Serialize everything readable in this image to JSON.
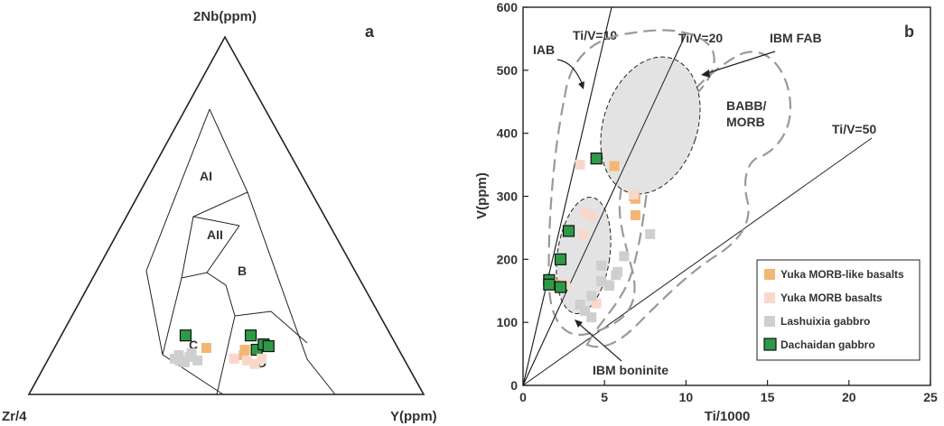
{
  "chart_data": [
    {
      "type": "ternary",
      "panel_label": "a",
      "apices": {
        "top": "2Nb(ppm)",
        "left": "Zr/4",
        "right": "Y(ppm)"
      },
      "field_labels": [
        "AI",
        "AII",
        "B",
        "C",
        "D"
      ],
      "series": [
        {
          "name": "Dachaidan gabbro",
          "color": "#2e9a47",
          "points": [
            [
              52,
              16.5,
              31.5
            ],
            [
              35.5,
              16.5,
              48
            ],
            [
              36,
              12.5,
              51.5
            ],
            [
              33.5,
              14,
              52.5
            ],
            [
              32.5,
              13.5,
              54
            ]
          ]
        },
        {
          "name": "Yuka MORB-like basalts",
          "color": "#f4b673",
          "points": [
            [
              48.5,
              13,
              38.5
            ],
            [
              40,
              11,
              49
            ],
            [
              39,
              12.5,
              48.5
            ]
          ]
        },
        {
          "name": "Yuka MORB basalts",
          "color": "#f9d8cc",
          "points": [
            [
              43,
              10,
              47
            ],
            [
              38.5,
              8.5,
              53
            ],
            [
              36,
              10,
              54
            ],
            [
              40,
              9.5,
              50.5
            ]
          ]
        },
        {
          "name": "Lashuixia gabbro",
          "color": "#cfcfcf",
          "points": [
            [
              56.5,
              11,
              32.5
            ],
            [
              58,
              10,
              32
            ],
            [
              56,
              9,
              35
            ],
            [
              54,
              10.5,
              35.5
            ],
            [
              53,
              11.5,
              35.5
            ],
            [
              57,
              9.5,
              33.5
            ],
            [
              52.5,
              9.5,
              38
            ]
          ]
        }
      ]
    },
    {
      "type": "scatter",
      "panel_label": "b",
      "xlabel": "Ti/1000",
      "ylabel": "V(ppm)",
      "xlim": [
        0,
        25
      ],
      "ylim": [
        0,
        600
      ],
      "xticks": [
        "0",
        "5",
        "10",
        "15",
        "20",
        "25"
      ],
      "yticks": [
        "0",
        "100",
        "200",
        "300",
        "400",
        "500",
        "600"
      ],
      "ratio_lines": [
        "Ti/V=10",
        "Ti/V=20",
        "Ti/V=50"
      ],
      "field_labels": [
        "IAB",
        "IBM FAB",
        "BABB/",
        "MORB",
        "IBM boninite"
      ],
      "series": [
        {
          "name": "Yuka MORB-like basalts",
          "color": "#f4b673",
          "points": [
            [
              5.6,
              348
            ],
            [
              6.8,
              300
            ],
            [
              6.9,
              296
            ],
            [
              6.9,
              270
            ],
            [
              2.3,
              160
            ]
          ]
        },
        {
          "name": "Yuka MORB basalts",
          "color": "#f9d8cc",
          "points": [
            [
              3.5,
              350
            ],
            [
              3.8,
              275
            ],
            [
              4.2,
              268
            ],
            [
              3.7,
              240
            ],
            [
              4.5,
              130
            ],
            [
              2.6,
              160
            ],
            [
              5.2,
              160
            ],
            [
              6.8,
              303
            ]
          ]
        },
        {
          "name": "Lashuixia gabbro",
          "color": "#cfcfcf",
          "points": [
            [
              5.8,
              180
            ],
            [
              6.2,
              205
            ],
            [
              7.8,
              240
            ],
            [
              5.7,
              175
            ],
            [
              5.3,
              158
            ],
            [
              4.8,
              165
            ],
            [
              4.2,
              142
            ],
            [
              3.8,
              118
            ],
            [
              4.2,
              108
            ],
            [
              3.5,
              128
            ],
            [
              4.8,
              190
            ]
          ]
        },
        {
          "name": "Dachaidan gabbro",
          "color": "#2e9a47",
          "points": [
            [
              4.5,
              360
            ],
            [
              2.8,
              245
            ],
            [
              2.3,
              200
            ],
            [
              1.6,
              167
            ],
            [
              1.6,
              160
            ],
            [
              2.3,
              156
            ]
          ]
        }
      ]
    }
  ]
}
